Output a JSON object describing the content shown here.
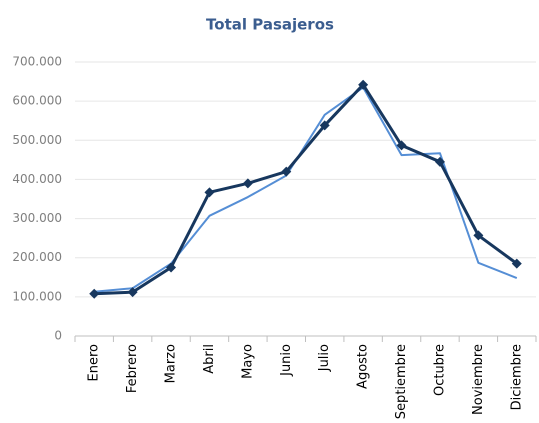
{
  "chart_data": {
    "type": "line",
    "title": "Total  Pasajeros",
    "categories": [
      "Enero",
      "Febrero",
      "Marzo",
      "Abril",
      "Mayo",
      "Junio",
      "Julio",
      "Agosto",
      "Septiembre",
      "Octubre",
      "Noviembre",
      "Diciembre"
    ],
    "series": [
      {
        "color": "#558ed5",
        "values": [
          113000,
          122000,
          185000,
          307000,
          355000,
          410000,
          565000,
          635000,
          462000,
          467000,
          187000,
          148000
        ]
      },
      {
        "color": "#17375e",
        "marker": "diamond",
        "values": [
          108000,
          112000,
          175000,
          367000,
          390000,
          420000,
          538000,
          642000,
          487000,
          445000,
          257000,
          185000
        ]
      }
    ],
    "ylim": [
      0,
      700000
    ],
    "yticks": [
      0,
      {
        "value": 100000,
        "label": "100.000"
      },
      {
        "value": 200000,
        "label": "200.000"
      },
      {
        "value": 300000,
        "label": "300.000"
      },
      {
        "value": 400000,
        "label": "400.000"
      },
      {
        "value": 500000,
        "label": "500.000"
      },
      {
        "value": 600000,
        "label": "600.000"
      },
      {
        "value": 700000,
        "label": "700.000"
      }
    ],
    "grid": true
  }
}
